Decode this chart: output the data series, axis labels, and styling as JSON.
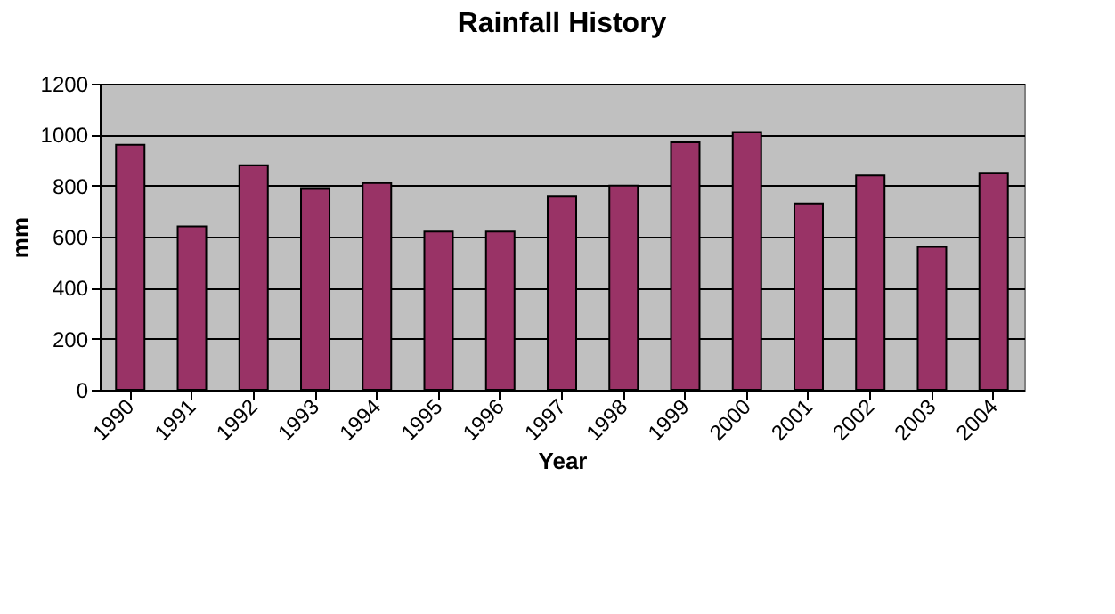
{
  "chart_data": {
    "type": "bar",
    "title": "Rainfall History",
    "xlabel": "Year",
    "ylabel": "mm",
    "categories": [
      "1990",
      "1991",
      "1992",
      "1993",
      "1994",
      "1995",
      "1996",
      "1997",
      "1998",
      "1999",
      "2000",
      "2001",
      "2002",
      "2003",
      "2004"
    ],
    "values": [
      960,
      640,
      880,
      790,
      810,
      620,
      620,
      760,
      800,
      970,
      1010,
      730,
      840,
      560,
      850
    ],
    "color": "#993366",
    "ylim": [
      0,
      1200
    ],
    "yticks": [
      0,
      200,
      400,
      600,
      800,
      1000,
      1200
    ],
    "grid": "y"
  }
}
